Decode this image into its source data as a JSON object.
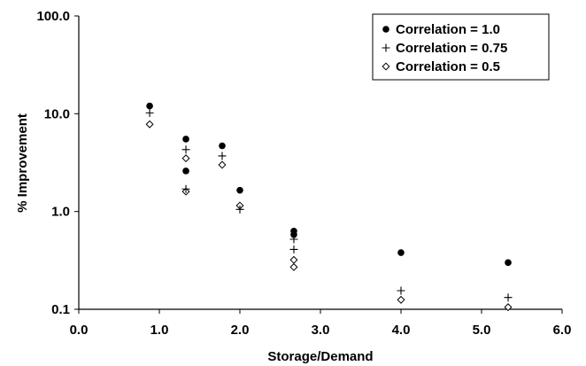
{
  "chart_data": {
    "type": "scatter",
    "xlabel": "Storage/Demand",
    "ylabel": "% Improvement",
    "xlim": [
      0.0,
      6.0
    ],
    "ylim": [
      0.1,
      100.0
    ],
    "y_scale": "log",
    "x_ticks": [
      "0.0",
      "1.0",
      "2.0",
      "3.0",
      "4.0",
      "5.0",
      "6.0"
    ],
    "y_ticks": [
      "0.1",
      "1.0",
      "10.0",
      "100.0"
    ],
    "legend_position": "top-right",
    "grid": false,
    "series": [
      {
        "name": "Correlation = 1.0",
        "marker": "filled-circle",
        "points": [
          [
            0.88,
            12.0
          ],
          [
            1.33,
            5.5
          ],
          [
            1.33,
            2.6
          ],
          [
            1.78,
            4.7
          ],
          [
            2.0,
            1.65
          ],
          [
            2.67,
            0.63
          ],
          [
            2.67,
            0.58
          ],
          [
            4.0,
            0.38
          ],
          [
            5.33,
            0.3
          ]
        ]
      },
      {
        "name": "Correlation = 0.75",
        "marker": "plus",
        "points": [
          [
            0.88,
            10.2
          ],
          [
            1.33,
            4.3
          ],
          [
            1.33,
            1.7
          ],
          [
            1.78,
            3.7
          ],
          [
            2.0,
            1.05
          ],
          [
            2.67,
            0.52
          ],
          [
            2.67,
            0.41
          ],
          [
            4.0,
            0.155
          ],
          [
            5.33,
            0.132
          ]
        ]
      },
      {
        "name": "Correlation = 0.5",
        "marker": "open-diamond",
        "points": [
          [
            0.88,
            7.8
          ],
          [
            1.33,
            3.5
          ],
          [
            1.33,
            1.6
          ],
          [
            1.78,
            3.0
          ],
          [
            2.0,
            1.15
          ],
          [
            2.67,
            0.32
          ],
          [
            2.67,
            0.27
          ],
          [
            4.0,
            0.125
          ],
          [
            5.33,
            0.105
          ]
        ]
      }
    ]
  }
}
